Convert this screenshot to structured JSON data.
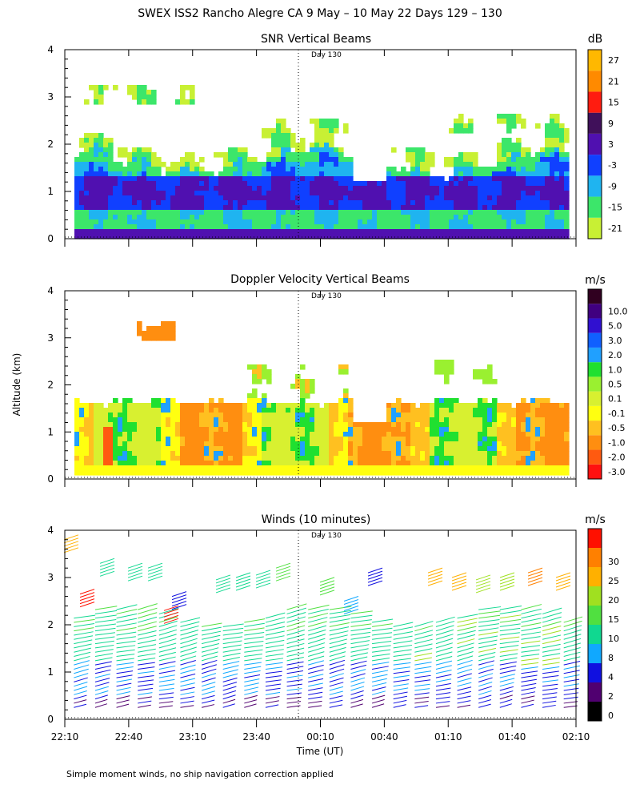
{
  "title": "SWEX ISS2 Rancho Alegre CA    9 May – 10 May 22 Days 129 – 130",
  "ylabel": "Altitude (km)",
  "xlabel": "Time (UT)",
  "footnote": "Simple moment winds, no ship navigation correction applied",
  "day_marker": "Day 130",
  "colors": {
    "snr": [
      "#c8f034",
      "#3ce66a",
      "#1fb4f0",
      "#1040ff",
      "#5010b0",
      "#40105a",
      "#ff1c10",
      "#ff8a00",
      "#ffb800"
    ],
    "doppler": [
      "#ff1010",
      "#ff5a10",
      "#ff8e10",
      "#ffc020",
      "#ffff10",
      "#d8f030",
      "#9af030",
      "#20e030",
      "#20a0ff",
      "#1060ff",
      "#3010d0",
      "#400080",
      "#300020"
    ],
    "winds": [
      "#000000",
      "#500070",
      "#1010e0",
      "#10a8ff",
      "#10d890",
      "#50e040",
      "#a0e020",
      "#ffb000",
      "#ff8000",
      "#ff1000"
    ]
  },
  "chart_data": [
    {
      "type": "heatmap",
      "title": "SNR Vertical Beams",
      "units": "dB",
      "ylim": [
        0,
        4
      ],
      "yticks": [
        "0",
        "1",
        "2",
        "3",
        "4"
      ],
      "colorbar_labels": [
        "-21",
        "-15",
        "-9",
        "-3",
        "3",
        "9",
        "15",
        "21",
        "27"
      ],
      "x_range_hours": [
        22.1667,
        26.1667
      ],
      "data_altitude_km": [
        0.1,
        3.5
      ]
    },
    {
      "type": "heatmap",
      "title": "Doppler Velocity Vertical Beams",
      "units": "m/s",
      "ylim": [
        0,
        4
      ],
      "yticks": [
        "0",
        "1",
        "2",
        "3",
        "4"
      ],
      "colorbar_labels": [
        "-3.0",
        "-2.0",
        "-1.0",
        "-0.5",
        "-0.1",
        "0.1",
        "0.5",
        "1.0",
        "2.0",
        "3.0",
        "5.0",
        "10.0"
      ],
      "x_range_hours": [
        22.1667,
        26.1667
      ]
    },
    {
      "type": "scatter",
      "title": "Winds (10 minutes)",
      "units": "m/s",
      "ylim": [
        0,
        4
      ],
      "yticks": [
        "0",
        "1",
        "2",
        "3",
        "4"
      ],
      "xticks": [
        "22:10",
        "22:40",
        "23:10",
        "23:40",
        "00:10",
        "00:40",
        "01:10",
        "01:40",
        "02:10"
      ],
      "colorbar_labels": [
        "0",
        "2",
        "4",
        "8",
        "10",
        "15",
        "20",
        "25",
        "30"
      ],
      "profile_interval_min": 10
    }
  ]
}
